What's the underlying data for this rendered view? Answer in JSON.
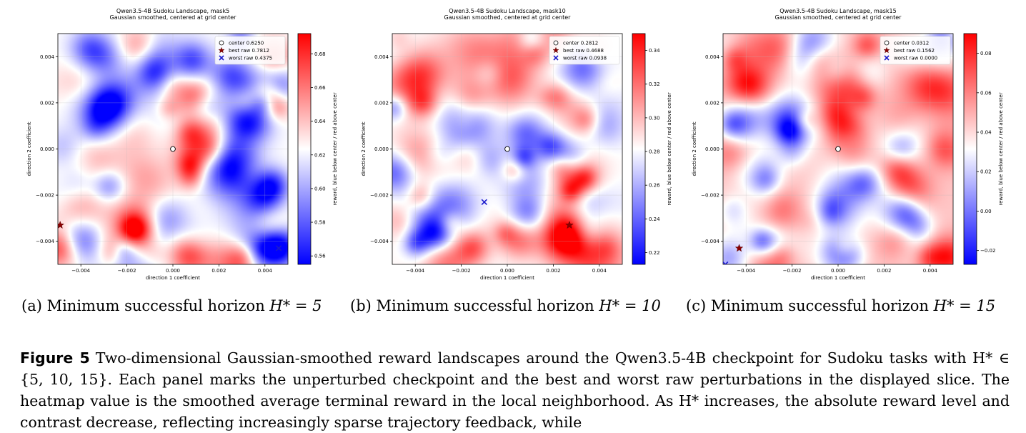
{
  "chart_data": [
    {
      "type": "heatmap",
      "title": "Qwen3.5-4B Sudoku Landscape, mask5",
      "subtitle": "Gaussian smoothed, centered at grid center",
      "xlabel": "direction 1 coefficient",
      "ylabel": "direction 2 coefficient",
      "colorbar_label": "reward, blue below center / red above center",
      "xlim": [
        -0.005,
        0.005
      ],
      "ylim": [
        -0.005,
        0.005
      ],
      "x_ticks": [
        "−0.004",
        "−0.002",
        "0.000",
        "0.002",
        "0.004"
      ],
      "y_ticks": [
        "−0.004",
        "−0.002",
        "0.000",
        "0.002",
        "0.004"
      ],
      "colorbar_range": [
        0.555,
        0.692
      ],
      "colorbar_ticks": [
        "0.56",
        "0.58",
        "0.60",
        "0.62",
        "0.64",
        "0.66",
        "0.68"
      ],
      "center_value": 0.625,
      "seed": 5,
      "bias": 0.0,
      "hotspots": [
        {
          "x": -0.0049,
          "y": -0.0043,
          "amp": 1.2
        },
        {
          "x": 0.0006,
          "y": -0.0046,
          "amp": 0.9
        },
        {
          "x": 0.0045,
          "y": -0.0043,
          "amp": -1.2
        },
        {
          "x": -0.0015,
          "y": 0.0045,
          "amp": 0.6
        }
      ],
      "legend": [
        {
          "marker": "circle",
          "label": "center 0.6250"
        },
        {
          "marker": "star",
          "label": "best raw 0.7812"
        },
        {
          "marker": "x",
          "label": "worst raw 0.4375"
        }
      ],
      "points": {
        "center": {
          "x": 0.0,
          "y": 0.0
        },
        "best": {
          "x": -0.0049,
          "y": -0.0033
        },
        "worst": {
          "x": 0.0046,
          "y": -0.0043
        }
      },
      "legend_position": "upper right"
    },
    {
      "type": "heatmap",
      "title": "Qwen3.5-4B Sudoku Landscape, mask10",
      "subtitle": "Gaussian smoothed, centered at grid center",
      "xlabel": "direction 1 coefficient",
      "ylabel": "direction 2 coefficient",
      "colorbar_label": "reward, blue below center / red above center",
      "xlim": [
        -0.005,
        0.005
      ],
      "ylim": [
        -0.005,
        0.005
      ],
      "x_ticks": [
        "−0.004",
        "−0.002",
        "0.000",
        "0.002",
        "0.004"
      ],
      "y_ticks": [
        "−0.004",
        "−0.002",
        "0.000",
        "0.002",
        "0.004"
      ],
      "colorbar_range": [
        0.213,
        0.35
      ],
      "colorbar_ticks": [
        "0.22",
        "0.24",
        "0.26",
        "0.28",
        "0.30",
        "0.32",
        "0.34"
      ],
      "center_value": 0.2812,
      "seed": 10,
      "bias": 0.0,
      "hotspots": [
        {
          "x": -0.0049,
          "y": -0.001,
          "amp": -1.0
        },
        {
          "x": 0.0008,
          "y": 0.0007,
          "amp": -1.0
        },
        {
          "x": 0.0027,
          "y": -0.0036,
          "amp": 0.8
        }
      ],
      "legend": [
        {
          "marker": "circle",
          "label": "center 0.2812"
        },
        {
          "marker": "star",
          "label": "best raw 0.4688"
        },
        {
          "marker": "x",
          "label": "worst raw 0.0938"
        }
      ],
      "points": {
        "center": {
          "x": 0.0,
          "y": 0.0
        },
        "best": {
          "x": 0.0027,
          "y": -0.0033
        },
        "worst": {
          "x": -0.001,
          "y": -0.0023
        }
      },
      "legend_position": "upper right"
    },
    {
      "type": "heatmap",
      "title": "Qwen3.5-4B Sudoku Landscape, mask15",
      "subtitle": "Gaussian smoothed, centered at grid center",
      "xlabel": "direction 1 coefficient",
      "ylabel": "direction 2 coefficient",
      "colorbar_label": "reward, blue below center / red above center",
      "xlim": [
        -0.005,
        0.005
      ],
      "ylim": [
        -0.005,
        0.005
      ],
      "x_ticks": [
        "−0.004",
        "−0.002",
        "0.000",
        "0.002",
        "0.004"
      ],
      "y_ticks": [
        "−0.004",
        "−0.002",
        "0.000",
        "0.002",
        "0.004"
      ],
      "colorbar_range": [
        -0.027,
        0.09
      ],
      "colorbar_ticks": [
        "−0.02",
        "0.00",
        "0.02",
        "0.04",
        "0.06",
        "0.08"
      ],
      "center_value": 0.0312,
      "seed": 15,
      "bias": 0.22,
      "hotspots": [
        {
          "x": 0.0048,
          "y": -0.0047,
          "amp": 1.3
        },
        {
          "x": -0.0048,
          "y": -0.0048,
          "amp": -1.0
        }
      ],
      "legend": [
        {
          "marker": "circle",
          "label": "center 0.0312"
        },
        {
          "marker": "star",
          "label": "best raw 0.1562"
        },
        {
          "marker": "x",
          "label": "worst raw 0.0000"
        }
      ],
      "points": {
        "center": {
          "x": 0.0,
          "y": 0.0
        },
        "best": {
          "x": -0.0043,
          "y": -0.0043
        },
        "worst": {
          "x": -0.0049,
          "y": -0.005
        }
      },
      "legend_position": "upper right"
    }
  ],
  "colors": {
    "low": "#0000ff",
    "mid": "#ffffff",
    "high": "#ff0000",
    "best_star": "#8b0000",
    "worst_x": "#1a1acc"
  },
  "captions": {
    "a_prefix": "(a) Minimum successful horizon ",
    "a_math": "H* = 5",
    "b_prefix": "(b) Minimum successful horizon ",
    "b_math": "H* = 10",
    "c_prefix": "(c) Minimum successful horizon ",
    "c_math": "H* = 15",
    "figure_label": "Figure 5",
    "figure_text": "Two-dimensional Gaussian-smoothed reward landscapes around the Qwen3.5-4B checkpoint for Sudoku tasks with H* ∈ {5, 10, 15}. Each panel marks the unperturbed checkpoint and the best and worst raw perturbations in the displayed slice. The heatmap value is the smoothed average terminal reward in the local neighborhood. As H* increases, the absolute reward level and contrast decrease, reflecting increasingly sparse trajectory feedback, while"
  }
}
